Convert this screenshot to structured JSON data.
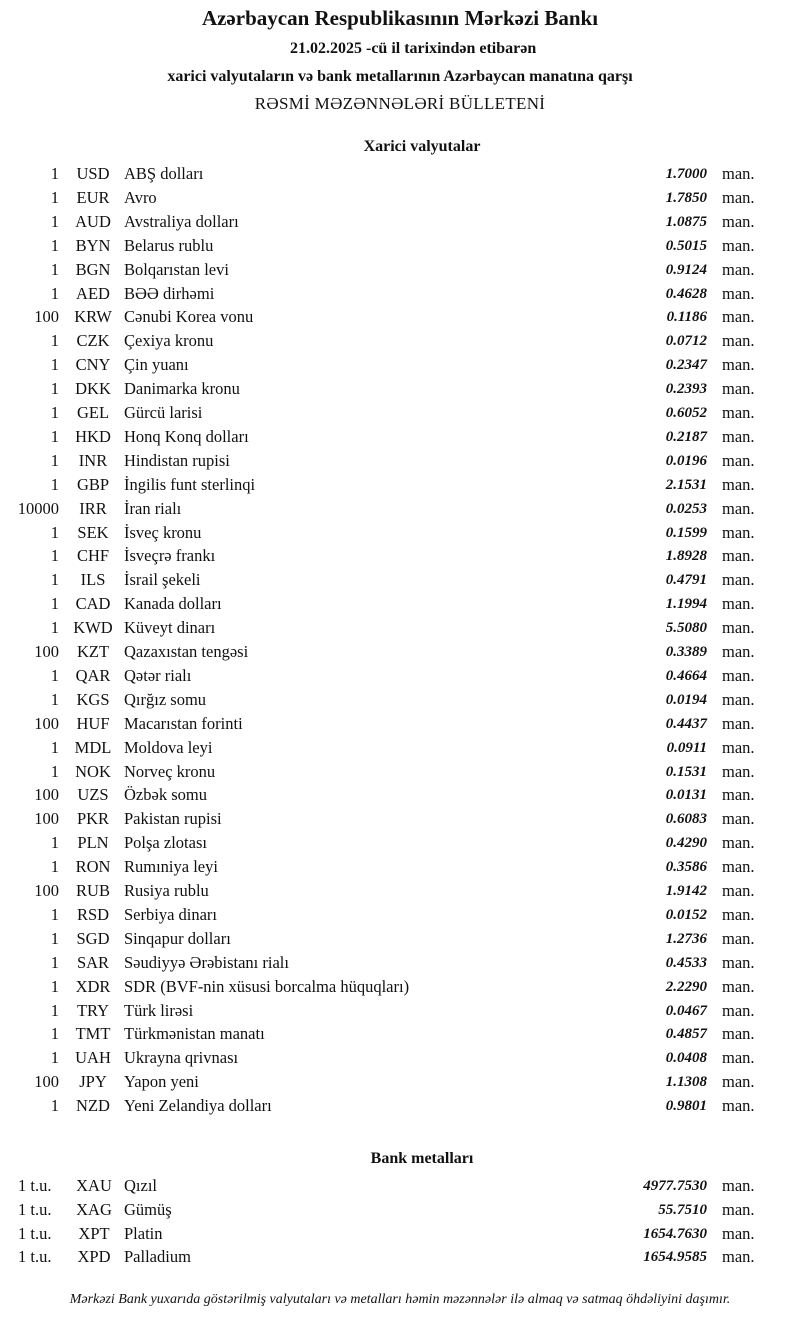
{
  "header": {
    "title": "Azərbaycan Respublikasının Mərkəzi Bankı",
    "date_line": "21.02.2025 -cü il tarixindən etibarən",
    "subtitle": "xarici valyutaların və bank metallarının Azərbaycan manatına qarşı",
    "bulletin": "RƏSMİ MƏZƏNNƏLƏRİ BÜLLETENİ"
  },
  "currencies": {
    "heading": "Xarici valyutalar",
    "unit": "man.",
    "rows": [
      {
        "nominal": "1",
        "code": "USD",
        "name": "ABŞ dolları",
        "rate": "1.7000"
      },
      {
        "nominal": "1",
        "code": "EUR",
        "name": "Avro",
        "rate": "1.7850"
      },
      {
        "nominal": "1",
        "code": "AUD",
        "name": "Avstraliya dolları",
        "rate": "1.0875"
      },
      {
        "nominal": "1",
        "code": "BYN",
        "name": "Belarus rublu",
        "rate": "0.5015"
      },
      {
        "nominal": "1",
        "code": "BGN",
        "name": "Bolqarıstan levi",
        "rate": "0.9124"
      },
      {
        "nominal": "1",
        "code": "AED",
        "name": "BƏƏ dirhəmi",
        "rate": "0.4628"
      },
      {
        "nominal": "100",
        "code": "KRW",
        "name": "Cənubi Korea vonu",
        "rate": "0.1186"
      },
      {
        "nominal": "1",
        "code": "CZK",
        "name": "Çexiya kronu",
        "rate": "0.0712"
      },
      {
        "nominal": "1",
        "code": "CNY",
        "name": "Çin yuanı",
        "rate": "0.2347"
      },
      {
        "nominal": "1",
        "code": "DKK",
        "name": "Danimarka kronu",
        "rate": "0.2393"
      },
      {
        "nominal": "1",
        "code": "GEL",
        "name": "Gürcü larisi",
        "rate": "0.6052"
      },
      {
        "nominal": "1",
        "code": "HKD",
        "name": "Honq Konq dolları",
        "rate": "0.2187"
      },
      {
        "nominal": "1",
        "code": "INR",
        "name": "Hindistan rupisi",
        "rate": "0.0196"
      },
      {
        "nominal": "1",
        "code": "GBP",
        "name": "İngilis funt sterlinqi",
        "rate": "2.1531"
      },
      {
        "nominal": "10000",
        "code": "IRR",
        "name": "İran rialı",
        "rate": "0.0253"
      },
      {
        "nominal": "1",
        "code": "SEK",
        "name": "İsveç kronu",
        "rate": "0.1599"
      },
      {
        "nominal": "1",
        "code": "CHF",
        "name": "İsveçrə frankı",
        "rate": "1.8928"
      },
      {
        "nominal": "1",
        "code": "ILS",
        "name": "İsrail şekeli",
        "rate": "0.4791"
      },
      {
        "nominal": "1",
        "code": "CAD",
        "name": "Kanada dolları",
        "rate": "1.1994"
      },
      {
        "nominal": "1",
        "code": "KWD",
        "name": "Küveyt dinarı",
        "rate": "5.5080"
      },
      {
        "nominal": "100",
        "code": "KZT",
        "name": "Qazaxıstan tengəsi",
        "rate": "0.3389"
      },
      {
        "nominal": "1",
        "code": "QAR",
        "name": "Qətər rialı",
        "rate": "0.4664"
      },
      {
        "nominal": "1",
        "code": "KGS",
        "name": "Qırğız somu",
        "rate": "0.0194"
      },
      {
        "nominal": "100",
        "code": "HUF",
        "name": "Macarıstan forinti",
        "rate": "0.4437"
      },
      {
        "nominal": "1",
        "code": "MDL",
        "name": "Moldova leyi",
        "rate": "0.0911"
      },
      {
        "nominal": "1",
        "code": "NOK",
        "name": "Norveç kronu",
        "rate": "0.1531"
      },
      {
        "nominal": "100",
        "code": "UZS",
        "name": "Özbək somu",
        "rate": "0.0131"
      },
      {
        "nominal": "100",
        "code": "PKR",
        "name": "Pakistan rupisi",
        "rate": "0.6083"
      },
      {
        "nominal": "1",
        "code": "PLN",
        "name": "Polşa zlotası",
        "rate": "0.4290"
      },
      {
        "nominal": "1",
        "code": "RON",
        "name": "Rumıniya leyi",
        "rate": "0.3586"
      },
      {
        "nominal": "100",
        "code": "RUB",
        "name": "Rusiya rublu",
        "rate": "1.9142"
      },
      {
        "nominal": "1",
        "code": "RSD",
        "name": "Serbiya dinarı",
        "rate": "0.0152"
      },
      {
        "nominal": "1",
        "code": "SGD",
        "name": "Sinqapur dolları",
        "rate": "1.2736"
      },
      {
        "nominal": "1",
        "code": "SAR",
        "name": "Səudiyyə Ərəbistanı rialı",
        "rate": "0.4533"
      },
      {
        "nominal": "1",
        "code": "XDR",
        "name": "SDR (BVF-nin xüsusi borcalma hüquqları)",
        "rate": "2.2290"
      },
      {
        "nominal": "1",
        "code": "TRY",
        "name": "Türk lirəsi",
        "rate": "0.0467"
      },
      {
        "nominal": "1",
        "code": "TMT",
        "name": "Türkmənistan manatı",
        "rate": "0.4857"
      },
      {
        "nominal": "1",
        "code": "UAH",
        "name": "Ukrayna qrivnası",
        "rate": "0.0408"
      },
      {
        "nominal": "100",
        "code": "JPY",
        "name": "Yapon yeni",
        "rate": "1.1308"
      },
      {
        "nominal": "1",
        "code": "NZD",
        "name": "Yeni Zelandiya dolları",
        "rate": "0.9801"
      }
    ]
  },
  "metals": {
    "heading": "Bank metalları",
    "unit": "man.",
    "rows": [
      {
        "nominal": "1 t.u.",
        "code": "XAU",
        "name": "Qızıl",
        "rate": "4977.7530"
      },
      {
        "nominal": "1 t.u.",
        "code": "XAG",
        "name": "Gümüş",
        "rate": "55.7510"
      },
      {
        "nominal": "1 t.u.",
        "code": "XPT",
        "name": "Platin",
        "rate": "1654.7630"
      },
      {
        "nominal": "1 t.u.",
        "code": "XPD",
        "name": "Palladium",
        "rate": "1654.9585"
      }
    ]
  },
  "footer": "Mərkəzi Bank yuxarıda göstərilmiş valyutaları və metalları həmin məzənnələr ilə almaq və satmaq öhdəliyini daşımır."
}
